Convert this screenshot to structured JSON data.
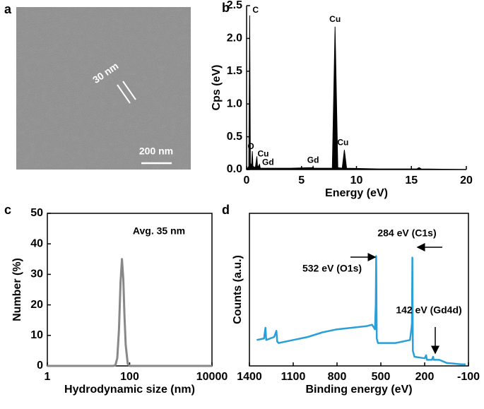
{
  "chart_data": [
    {
      "type": "image",
      "panel": "a",
      "annotations": [
        "30 nm",
        "200 nm"
      ]
    },
    {
      "type": "area",
      "panel": "b",
      "xlabel": "Energy (eV)",
      "ylabel": "Cps (eV)",
      "color": "#000000",
      "x": [
        0,
        0.2,
        0.28,
        0.35,
        0.45,
        0.52,
        0.58,
        0.8,
        0.93,
        1.0,
        1.18,
        1.25,
        2,
        4,
        6,
        6.05,
        6.1,
        7.8,
        8.05,
        8.3,
        8.7,
        8.9,
        9.1,
        12,
        15.5,
        15.7,
        15.9,
        20
      ],
      "values": [
        0,
        0.05,
        2.35,
        0.1,
        0.05,
        0.28,
        0.05,
        0.03,
        0.2,
        0.03,
        0.08,
        0.02,
        0.02,
        0.02,
        0.03,
        0.05,
        0.02,
        0.02,
        2.18,
        0.03,
        0.02,
        0.3,
        0.02,
        0.01,
        0.01,
        0.03,
        0.01,
        0
      ],
      "xlim": [
        0,
        20
      ],
      "xticks": [
        0,
        5,
        10,
        15,
        20
      ],
      "ylim": [
        0,
        2.5
      ],
      "yticks": [
        {
          "value": 0,
          "label": "0.0"
        },
        0.5,
        {
          "value": 1,
          "label": "1.0"
        },
        1.5,
        {
          "value": 2,
          "label": "2.0"
        },
        2.5
      ],
      "annotations": [
        {
          "label": "C",
          "x": 0.28,
          "y": 2.35
        },
        {
          "label": "O",
          "x": 0.52,
          "y": 0.28
        },
        {
          "label": "Cu",
          "x": 0.93,
          "y": 0.2
        },
        {
          "label": "Gd",
          "x": 1.18,
          "y": 0.08
        },
        {
          "label": "Gd",
          "x": 6.05,
          "y": 0.05
        },
        {
          "label": "Cu",
          "x": 8.05,
          "y": 2.18
        },
        {
          "label": "Cu",
          "x": 8.9,
          "y": 0.3
        }
      ]
    },
    {
      "type": "line",
      "panel": "c",
      "xlabel": "Hydrodynamic size (nm)",
      "ylabel": "Number (%)",
      "color": "#888888",
      "log_x": true,
      "x": [
        1,
        40,
        45,
        50,
        55,
        60,
        65,
        70,
        75,
        80,
        90,
        100,
        10000
      ],
      "values": [
        0,
        0,
        0.2,
        2.6,
        12,
        27.4,
        35,
        28.5,
        16.2,
        6.9,
        0.7,
        0,
        0
      ],
      "xlim": [
        1,
        10000
      ],
      "xticks": [
        1,
        100,
        10000
      ],
      "ylim": [
        0,
        50
      ],
      "yticks": [
        0,
        10,
        20,
        30,
        40,
        50
      ],
      "annotations": [
        "Avg. 35 nm"
      ]
    },
    {
      "type": "line",
      "panel": "d",
      "xlabel": "Binding energy (eV)",
      "ylabel": "Counts (a.u.)",
      "color": "#2a9fd8",
      "x": [
        1350,
        1300,
        1290,
        1285,
        1230,
        1215,
        1210,
        1200,
        1100,
        1000,
        900,
        800,
        700,
        600,
        560,
        540,
        535,
        532,
        528,
        520,
        400,
        300,
        290,
        287,
        284,
        281,
        270,
        200,
        190,
        185,
        150,
        142,
        138,
        100,
        50,
        -50,
        -80
      ],
      "values": [
        17,
        18,
        25,
        17,
        19,
        23,
        16,
        15,
        17,
        19,
        22,
        24,
        25,
        26,
        27,
        24,
        40,
        72,
        18,
        15,
        15,
        17,
        25,
        28,
        71,
        10,
        6,
        5,
        7,
        4,
        4,
        6,
        4,
        4,
        2,
        1,
        1
      ],
      "xlim": [
        1400,
        -100
      ],
      "xticks": [
        1400,
        1100,
        800,
        500,
        200,
        -100
      ],
      "ylim": [
        0,
        100
      ],
      "annotations": [
        "532 eV (O1s)",
        "284 eV (C1s)",
        "142 eV (Gd4d)"
      ]
    }
  ]
}
